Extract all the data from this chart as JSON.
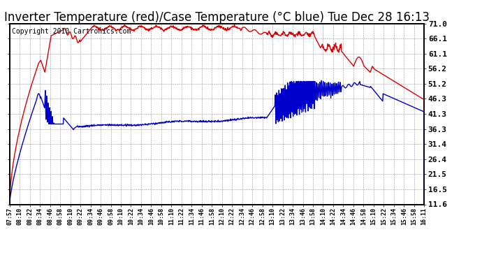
{
  "title": "Inverter Temperature (red)/Case Temperature (°C blue) Tue Dec 28 16:13",
  "copyright": "Copyright 2010 Cartronics.com",
  "yticks": [
    11.6,
    16.5,
    21.5,
    26.4,
    31.4,
    36.3,
    41.3,
    46.3,
    51.2,
    56.2,
    61.1,
    66.1,
    71.0
  ],
  "ylim": [
    11.6,
    71.0
  ],
  "red_color": "#dd0000",
  "blue_color": "#0000cc",
  "bg_color": "#ffffff",
  "plot_bg_color": "#ffffff",
  "grid_color": "#999999",
  "title_fontsize": 12,
  "copyright_fontsize": 7,
  "xtick_labels": [
    "07:57",
    "08:10",
    "08:22",
    "08:34",
    "08:46",
    "08:58",
    "09:10",
    "09:22",
    "09:34",
    "09:46",
    "09:58",
    "10:10",
    "10:22",
    "10:34",
    "10:46",
    "10:58",
    "11:10",
    "11:22",
    "11:34",
    "11:46",
    "11:58",
    "12:10",
    "12:22",
    "12:34",
    "12:46",
    "12:58",
    "13:10",
    "13:22",
    "13:34",
    "13:46",
    "13:58",
    "14:10",
    "14:22",
    "14:34",
    "14:46",
    "14:58",
    "15:10",
    "15:22",
    "15:34",
    "15:46",
    "15:58",
    "16:11"
  ]
}
